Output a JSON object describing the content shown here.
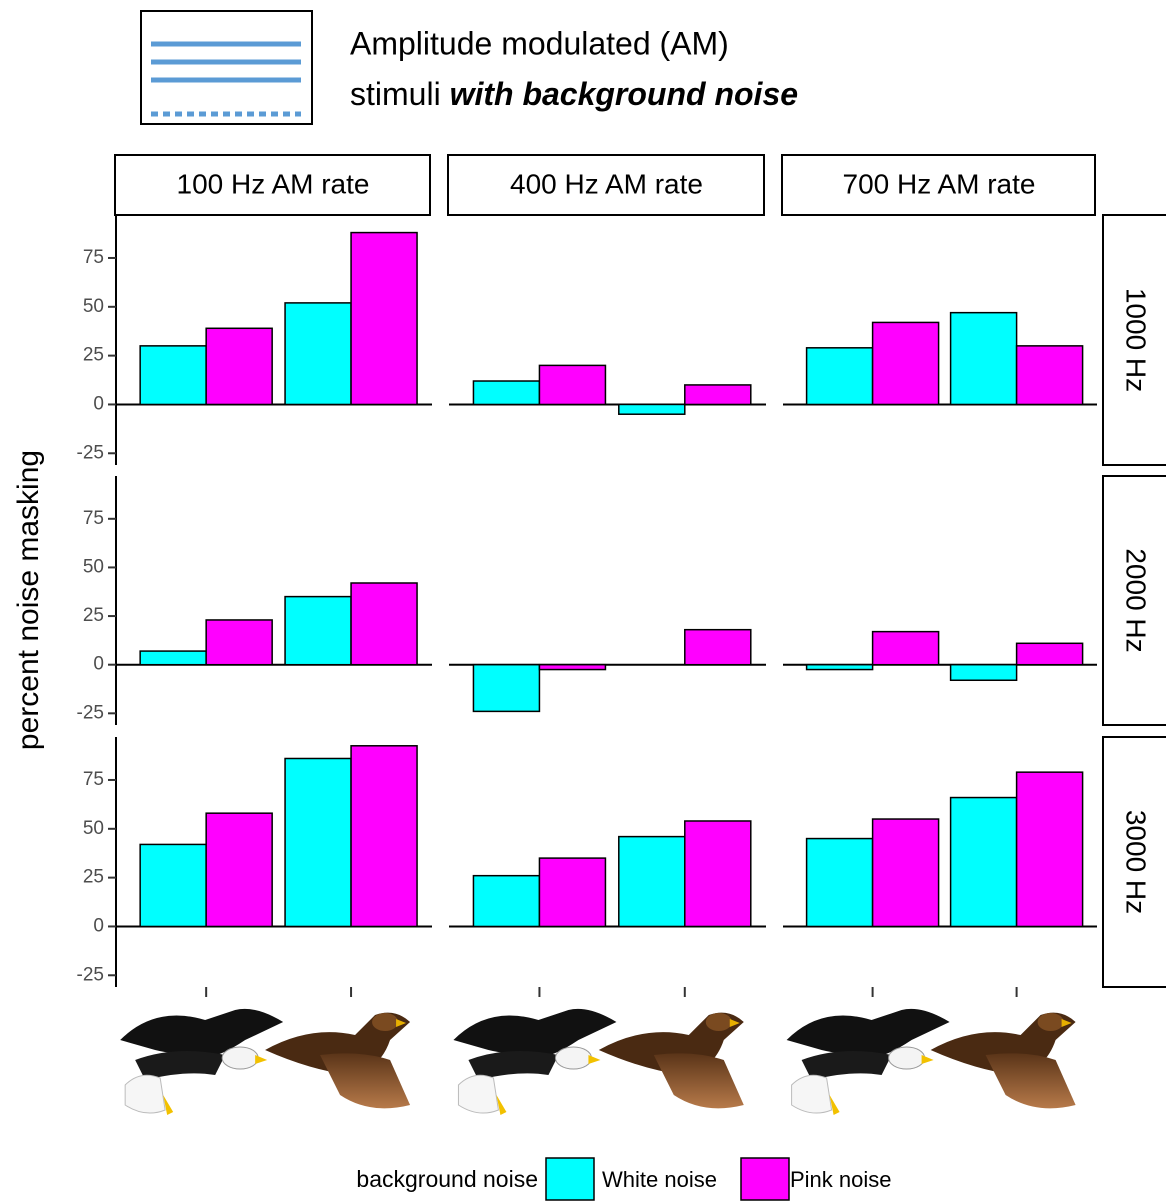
{
  "chart_data": {
    "type": "bar",
    "title": "Amplitude modulated (AM)",
    "subtitle": "stimuli",
    "subtitle_emphasis": "with background noise",
    "ylabel": "percent noise masking",
    "legend_title": "background noise",
    "columns": [
      "100 Hz AM rate",
      "400 Hz AM rate",
      "700 Hz AM rate"
    ],
    "rows": [
      "1000 Hz",
      "2000 Hz",
      "3000 Hz"
    ],
    "categories": [
      null,
      null
    ],
    "series": [
      {
        "name": "White noise",
        "color": "#00ffff"
      },
      {
        "name": "Pink noise",
        "color": "#ff00ff"
      }
    ],
    "panels": [
      {
        "values": [
          [
            30,
            52
          ],
          [
            39,
            88
          ]
        ]
      },
      {
        "values": [
          [
            12,
            -5
          ],
          [
            20,
            10
          ]
        ]
      },
      {
        "values": [
          [
            29,
            47
          ],
          [
            42,
            30
          ]
        ]
      },
      {
        "values": [
          [
            7,
            35
          ],
          [
            23,
            42
          ]
        ]
      },
      {
        "values": [
          [
            -24,
            0
          ],
          [
            -2.5,
            18
          ]
        ]
      },
      {
        "values": [
          [
            -2.5,
            -8
          ],
          [
            17,
            11
          ]
        ]
      },
      {
        "values": [
          [
            42,
            86
          ],
          [
            58,
            92.5
          ]
        ]
      },
      {
        "values": [
          [
            26,
            46
          ],
          [
            35,
            54
          ]
        ]
      },
      {
        "values": [
          [
            45,
            66
          ],
          [
            55,
            79
          ]
        ]
      }
    ],
    "ylim": [
      -31,
      97
    ],
    "yticks": [
      -25,
      0,
      25,
      50,
      75
    ]
  }
}
